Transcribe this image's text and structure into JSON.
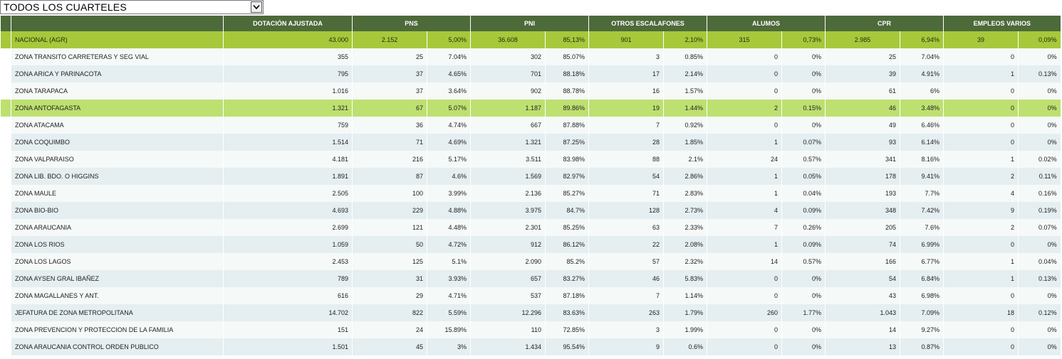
{
  "selector": {
    "value": "TODOS LOS CUARTELES"
  },
  "headers": {
    "dotacion": "DOTACIÓN AJUSTADA",
    "pns": "PNS",
    "pni": "PNI",
    "otros": "OTROS ESCALAFONES",
    "alumnos": "ALUMOS",
    "cpr": "CPR",
    "empleos": "EMPLEOS VARIOS"
  },
  "national": {
    "name": "NACIONAL (AGR)",
    "dotacion": "43.000",
    "pns": "2.152",
    "pns_pct": "5,00%",
    "pni": "36.608",
    "pni_pct": "85,13%",
    "otros": "901",
    "otros_pct": "2,10%",
    "alumnos": "315",
    "alumnos_pct": "0,73%",
    "cpr": "2.985",
    "cpr_pct": "6,94%",
    "empleos": "39",
    "empleos_pct": "0,09%"
  },
  "rows": [
    {
      "name": "ZONA TRANSITO CARRETERAS Y SEG VIAL",
      "dotacion": "355",
      "pns": "25",
      "pns_pct": "7.04%",
      "pni": "302",
      "pni_pct": "85.07%",
      "otros": "3",
      "otros_pct": "0.85%",
      "alumnos": "0",
      "alumnos_pct": "0%",
      "cpr": "25",
      "cpr_pct": "7.04%",
      "empleos": "0",
      "empleos_pct": "0%"
    },
    {
      "name": "ZONA ARICA Y PARINACOTA",
      "dotacion": "795",
      "pns": "37",
      "pns_pct": "4.65%",
      "pni": "701",
      "pni_pct": "88.18%",
      "otros": "17",
      "otros_pct": "2.14%",
      "alumnos": "0",
      "alumnos_pct": "0%",
      "cpr": "39",
      "cpr_pct": "4.91%",
      "empleos": "1",
      "empleos_pct": "0.13%"
    },
    {
      "name": "ZONA TARAPACA",
      "dotacion": "1.016",
      "pns": "37",
      "pns_pct": "3.64%",
      "pni": "902",
      "pni_pct": "88.78%",
      "otros": "16",
      "otros_pct": "1.57%",
      "alumnos": "0",
      "alumnos_pct": "0%",
      "cpr": "61",
      "cpr_pct": "6%",
      "empleos": "0",
      "empleos_pct": "0%"
    },
    {
      "name": "ZONA ANTOFAGASTA",
      "dotacion": "1.321",
      "pns": "67",
      "pns_pct": "5.07%",
      "pni": "1.187",
      "pni_pct": "89.86%",
      "otros": "19",
      "otros_pct": "1.44%",
      "alumnos": "2",
      "alumnos_pct": "0.15%",
      "cpr": "46",
      "cpr_pct": "3.48%",
      "empleos": "0",
      "empleos_pct": "0%"
    },
    {
      "name": "ZONA ATACAMA",
      "dotacion": "759",
      "pns": "36",
      "pns_pct": "4.74%",
      "pni": "667",
      "pni_pct": "87.88%",
      "otros": "7",
      "otros_pct": "0.92%",
      "alumnos": "0",
      "alumnos_pct": "0%",
      "cpr": "49",
      "cpr_pct": "6.46%",
      "empleos": "0",
      "empleos_pct": "0%"
    },
    {
      "name": "ZONA COQUIMBO",
      "dotacion": "1.514",
      "pns": "71",
      "pns_pct": "4.69%",
      "pni": "1.321",
      "pni_pct": "87.25%",
      "otros": "28",
      "otros_pct": "1.85%",
      "alumnos": "1",
      "alumnos_pct": "0.07%",
      "cpr": "93",
      "cpr_pct": "6.14%",
      "empleos": "0",
      "empleos_pct": "0%"
    },
    {
      "name": "ZONA VALPARAISO",
      "dotacion": "4.181",
      "pns": "216",
      "pns_pct": "5.17%",
      "pni": "3.511",
      "pni_pct": "83.98%",
      "otros": "88",
      "otros_pct": "2.1%",
      "alumnos": "24",
      "alumnos_pct": "0.57%",
      "cpr": "341",
      "cpr_pct": "8.16%",
      "empleos": "1",
      "empleos_pct": "0.02%"
    },
    {
      "name": "ZONA LIB. BDO. O HIGGINS",
      "dotacion": "1.891",
      "pns": "87",
      "pns_pct": "4.6%",
      "pni": "1.569",
      "pni_pct": "82.97%",
      "otros": "54",
      "otros_pct": "2.86%",
      "alumnos": "1",
      "alumnos_pct": "0.05%",
      "cpr": "178",
      "cpr_pct": "9.41%",
      "empleos": "2",
      "empleos_pct": "0.11%"
    },
    {
      "name": "ZONA MAULE",
      "dotacion": "2.505",
      "pns": "100",
      "pns_pct": "3.99%",
      "pni": "2.136",
      "pni_pct": "85.27%",
      "otros": "71",
      "otros_pct": "2.83%",
      "alumnos": "1",
      "alumnos_pct": "0.04%",
      "cpr": "193",
      "cpr_pct": "7.7%",
      "empleos": "4",
      "empleos_pct": "0.16%"
    },
    {
      "name": "ZONA BIO-BIO",
      "dotacion": "4.693",
      "pns": "229",
      "pns_pct": "4.88%",
      "pni": "3.975",
      "pni_pct": "84.7%",
      "otros": "128",
      "otros_pct": "2.73%",
      "alumnos": "4",
      "alumnos_pct": "0.09%",
      "cpr": "348",
      "cpr_pct": "7.42%",
      "empleos": "9",
      "empleos_pct": "0.19%"
    },
    {
      "name": "ZONA ARAUCANIA",
      "dotacion": "2.699",
      "pns": "121",
      "pns_pct": "4.48%",
      "pni": "2.301",
      "pni_pct": "85.25%",
      "otros": "63",
      "otros_pct": "2.33%",
      "alumnos": "7",
      "alumnos_pct": "0.26%",
      "cpr": "205",
      "cpr_pct": "7.6%",
      "empleos": "2",
      "empleos_pct": "0.07%"
    },
    {
      "name": "ZONA LOS RIOS",
      "dotacion": "1.059",
      "pns": "50",
      "pns_pct": "4.72%",
      "pni": "912",
      "pni_pct": "86.12%",
      "otros": "22",
      "otros_pct": "2.08%",
      "alumnos": "1",
      "alumnos_pct": "0.09%",
      "cpr": "74",
      "cpr_pct": "6.99%",
      "empleos": "0",
      "empleos_pct": "0%"
    },
    {
      "name": "ZONA LOS LAGOS",
      "dotacion": "2.453",
      "pns": "125",
      "pns_pct": "5.1%",
      "pni": "2.090",
      "pni_pct": "85.2%",
      "otros": "57",
      "otros_pct": "2.32%",
      "alumnos": "14",
      "alumnos_pct": "0.57%",
      "cpr": "166",
      "cpr_pct": "6.77%",
      "empleos": "1",
      "empleos_pct": "0.04%"
    },
    {
      "name": "ZONA AYSEN GRAL IBAÑEZ",
      "dotacion": "789",
      "pns": "31",
      "pns_pct": "3.93%",
      "pni": "657",
      "pni_pct": "83.27%",
      "otros": "46",
      "otros_pct": "5.83%",
      "alumnos": "0",
      "alumnos_pct": "0%",
      "cpr": "54",
      "cpr_pct": "6.84%",
      "empleos": "1",
      "empleos_pct": "0.13%"
    },
    {
      "name": "ZONA MAGALLANES Y ANT.",
      "dotacion": "616",
      "pns": "29",
      "pns_pct": "4.71%",
      "pni": "537",
      "pni_pct": "87.18%",
      "otros": "7",
      "otros_pct": "1.14%",
      "alumnos": "0",
      "alumnos_pct": "0%",
      "cpr": "43",
      "cpr_pct": "6.98%",
      "empleos": "0",
      "empleos_pct": "0%"
    },
    {
      "name": "JEFATURA DE ZONA METROPOLITANA",
      "dotacion": "14.702",
      "pns": "822",
      "pns_pct": "5.59%",
      "pni": "12.296",
      "pni_pct": "83.63%",
      "otros": "263",
      "otros_pct": "1.79%",
      "alumnos": "260",
      "alumnos_pct": "1.77%",
      "cpr": "1.043",
      "cpr_pct": "7.09%",
      "empleos": "18",
      "empleos_pct": "0.12%"
    },
    {
      "name": "ZONA PREVENCION Y PROTECCION DE LA FAMILIA",
      "dotacion": "151",
      "pns": "24",
      "pns_pct": "15.89%",
      "pni": "110",
      "pni_pct": "72.85%",
      "otros": "3",
      "otros_pct": "1.99%",
      "alumnos": "0",
      "alumnos_pct": "0%",
      "cpr": "14",
      "cpr_pct": "9.27%",
      "empleos": "0",
      "empleos_pct": "0%"
    },
    {
      "name": "ZONA ARAUCANIA CONTROL ORDEN PUBLICO",
      "dotacion": "1.501",
      "pns": "45",
      "pns_pct": "3%",
      "pni": "1.434",
      "pni_pct": "95.54%",
      "otros": "9",
      "otros_pct": "0.6%",
      "alumnos": "0",
      "alumnos_pct": "0%",
      "cpr": "13",
      "cpr_pct": "0.87%",
      "empleos": "0",
      "empleos_pct": "0%"
    }
  ],
  "highlighted_row": 3,
  "colors": {
    "header_bg": "#4d6a3a",
    "national_bg": "#a7c83a",
    "highlight_bg": "#bde070",
    "row_light": "#f5f9f8",
    "row_alt": "#e5eef0"
  },
  "icons": {
    "dropdown": "chevron-down-icon"
  }
}
